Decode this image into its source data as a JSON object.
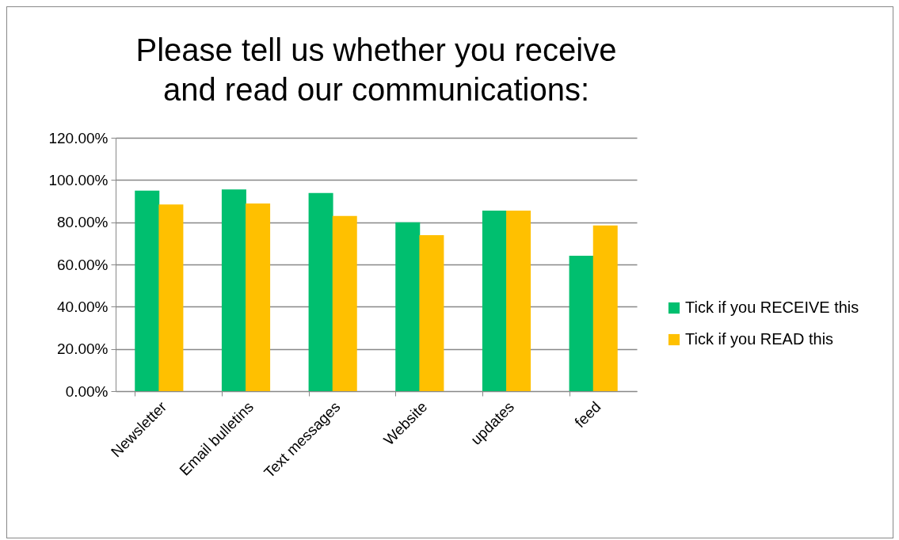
{
  "chart_data": {
    "type": "bar",
    "title": "Please tell us whether you receive and read our communications:",
    "categories": [
      "Newsletter",
      "Email bulletins",
      "Text messages",
      "Website",
      "updates",
      "feed"
    ],
    "series": [
      {
        "name": "Tick if you RECEIVE this",
        "color": "#00bf6f",
        "values": [
          95.0,
          95.5,
          93.8,
          80.0,
          85.5,
          64.1
        ]
      },
      {
        "name": "Tick if you READ this",
        "color": "#ffc000",
        "values": [
          88.4,
          88.9,
          83.0,
          73.9,
          85.5,
          78.5
        ]
      }
    ],
    "ylim": [
      0,
      120
    ],
    "yticks": [
      {
        "value": 0,
        "label": "0.00%"
      },
      {
        "value": 20,
        "label": "20.00%"
      },
      {
        "value": 40,
        "label": "40.00%"
      },
      {
        "value": 60,
        "label": "60.00%"
      },
      {
        "value": 80,
        "label": "80.00%"
      },
      {
        "value": 100,
        "label": "100.00%"
      },
      {
        "value": 120,
        "label": "120.00%"
      }
    ],
    "grid": "y",
    "legend": "right"
  }
}
